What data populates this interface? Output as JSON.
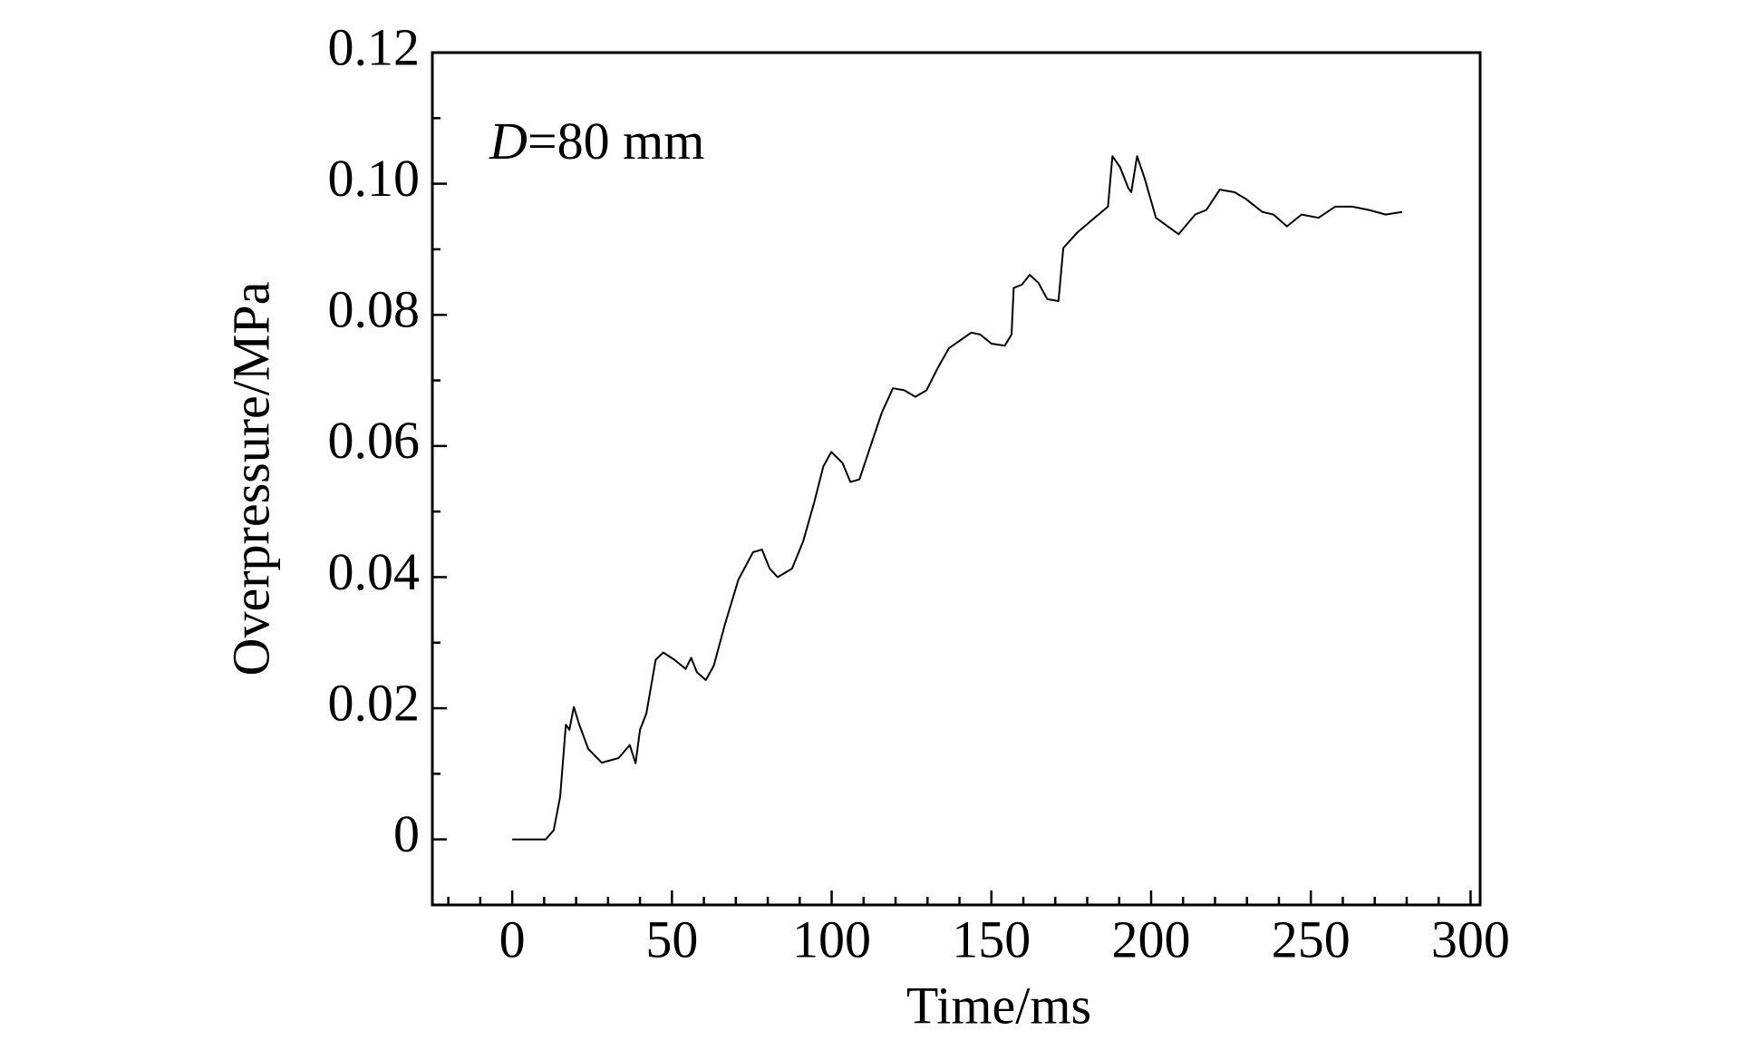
{
  "chart_data": {
    "type": "line",
    "annotation": {
      "variable": "D",
      "text": "=80 mm"
    },
    "xlabel": "Time/ms",
    "ylabel": "Overpressure/MPa",
    "xlim": [
      -25,
      303
    ],
    "ylim": [
      -0.01,
      0.12
    ],
    "xticks": [
      0,
      50,
      100,
      150,
      200,
      250,
      300
    ],
    "yticks": [
      0,
      0.02,
      0.04,
      0.06,
      0.08,
      {
        "value": 0.1,
        "label": "0.10"
      },
      0.12
    ],
    "grid": false,
    "series": [
      {
        "name": "D=80 mm",
        "color": "#000000",
        "x": [
          0,
          10.5,
          13,
          15,
          16.8,
          17.9,
          19.3,
          21,
          23.8,
          28,
          33.3,
          36.8,
          38.6,
          40,
          42,
          44.9,
          47.3,
          50.8,
          54.3,
          56,
          57.8,
          60.6,
          63.1,
          66.6,
          70.8,
          75.4,
          78.2,
          80.6,
          83.1,
          87.6,
          91.1,
          94.6,
          97.4,
          99.9,
          103.4,
          105.9,
          108.7,
          112.2,
          115.7,
          119.2,
          122.7,
          126.2,
          129.7,
          133.2,
          136.7,
          140.2,
          143.7,
          146.5,
          150,
          154.2,
          156.3,
          157,
          159.5,
          162,
          164.7,
          167.5,
          171,
          172.5,
          177,
          182.3,
          186.5,
          187.9,
          190.3,
          192.8,
          193.8,
          195.6,
          198,
          201.5,
          208.6,
          213.8,
          217.3,
          221.5,
          226.1,
          229.6,
          234.8,
          238.3,
          242.5,
          247.1,
          252.4,
          257.6,
          262.9,
          268.1,
          273.4,
          278.6
        ],
        "values": [
          0,
          0,
          0.0014,
          0.0065,
          0.0175,
          0.0167,
          0.0202,
          0.0175,
          0.0138,
          0.0117,
          0.0124,
          0.0144,
          0.0116,
          0.0167,
          0.0192,
          0.0274,
          0.0285,
          0.0274,
          0.026,
          0.0277,
          0.0255,
          0.0243,
          0.0265,
          0.0328,
          0.0396,
          0.0438,
          0.0442,
          0.0413,
          0.04,
          0.0413,
          0.0455,
          0.0515,
          0.0569,
          0.0591,
          0.0574,
          0.0545,
          0.0549,
          0.06,
          0.0651,
          0.0688,
          0.0685,
          0.0675,
          0.0685,
          0.0719,
          0.0749,
          0.0761,
          0.0773,
          0.077,
          0.0756,
          0.0753,
          0.077,
          0.0841,
          0.0846,
          0.0861,
          0.0849,
          0.0824,
          0.0821,
          0.0902,
          0.0926,
          0.0948,
          0.0965,
          0.1042,
          0.1025,
          0.0994,
          0.0987,
          0.1042,
          0.1008,
          0.0948,
          0.0923,
          0.0953,
          0.096,
          0.0991,
          0.0987,
          0.0977,
          0.0957,
          0.0953,
          0.0935,
          0.0953,
          0.0948,
          0.0965,
          0.0965,
          0.096,
          0.0953,
          0.0957
        ]
      }
    ]
  }
}
